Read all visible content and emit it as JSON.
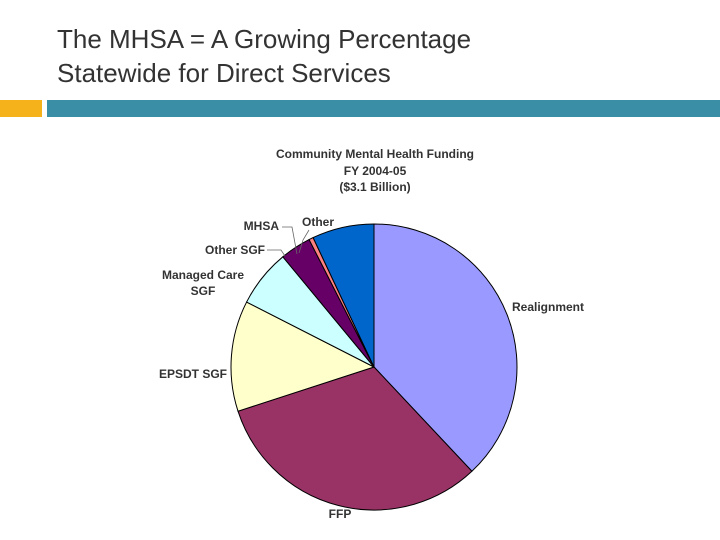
{
  "slide": {
    "title_line1": "The MHSA = A Growing Percentage",
    "title_line2": "Statewide for Direct Services",
    "accent_color": "#f5b21b",
    "band_color": "#3a8ea5"
  },
  "chart_data": {
    "type": "pie",
    "title_lines": [
      "Community Mental Health Funding",
      "FY 2004-05",
      "($3.1 Billion)"
    ],
    "unit": "percent",
    "slices": [
      {
        "label": "Realignment",
        "value": 38,
        "color": "#9999ff"
      },
      {
        "label": "FFP",
        "value": 32,
        "color": "#993366"
      },
      {
        "label": "EPSDT SGF",
        "value": 12.5,
        "color": "#ffffcc"
      },
      {
        "label": "Managed Care SGF",
        "value": 6.5,
        "color": "#ccffff"
      },
      {
        "label": "Other SGF",
        "value": 3.5,
        "color": "#660066"
      },
      {
        "label": "MHSA",
        "value": 0.5,
        "color": "#ff8080"
      },
      {
        "label": "Other",
        "value": 7,
        "color": "#0066cc"
      }
    ],
    "legend": "none"
  }
}
